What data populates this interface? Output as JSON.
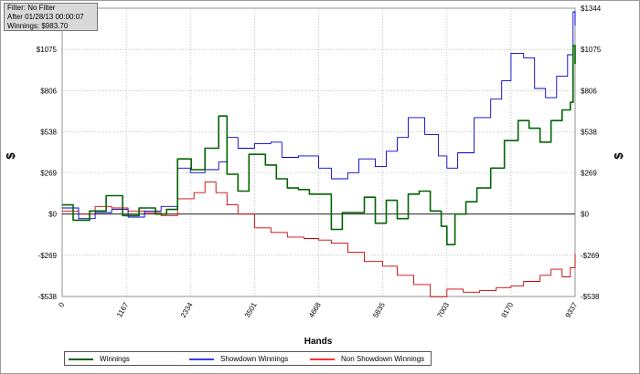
{
  "info_box": {
    "filter": "Filter: No Filter",
    "after": "After 01/28/13 00:00:07",
    "winnings": "Winnings: $983.70"
  },
  "chart_data": {
    "type": "line",
    "xlabel": "Hands",
    "ylabel_left": "$",
    "ylabel_right": "$",
    "xlim": [
      0,
      9337
    ],
    "ylim": [
      -538,
      1344
    ],
    "x_ticks": [
      0,
      1167,
      2334,
      3501,
      4668,
      5835,
      7003,
      8170,
      9337
    ],
    "x_tick_labels": [
      "0",
      "1167",
      "2334",
      "3501",
      "4668",
      "5835",
      "7003",
      "8170",
      "9337"
    ],
    "y_ticks": [
      -538,
      -269,
      0,
      269,
      538,
      806,
      1075,
      1344
    ],
    "y_tick_labels": [
      "-$538",
      "-$269",
      "$0",
      "$269",
      "$538",
      "$806",
      "$1075",
      "$1344"
    ],
    "left_y_tick_labels": [
      "-$538",
      "-$269",
      "$0",
      "$269",
      "$538",
      "$806",
      "$1075"
    ],
    "grid": true,
    "legend_position": "bottom-left",
    "series": [
      {
        "name": "Winnings",
        "color": "#006400",
        "points": [
          [
            0,
            60
          ],
          [
            200,
            -40
          ],
          [
            500,
            20
          ],
          [
            800,
            120
          ],
          [
            1100,
            -10
          ],
          [
            1400,
            40
          ],
          [
            1700,
            0
          ],
          [
            1900,
            30
          ],
          [
            2100,
            360
          ],
          [
            2350,
            290
          ],
          [
            2600,
            430
          ],
          [
            2850,
            640
          ],
          [
            3000,
            260
          ],
          [
            3200,
            150
          ],
          [
            3400,
            390
          ],
          [
            3700,
            320
          ],
          [
            3900,
            230
          ],
          [
            4100,
            170
          ],
          [
            4300,
            160
          ],
          [
            4500,
            130
          ],
          [
            4668,
            130
          ],
          [
            4900,
            -100
          ],
          [
            5100,
            10
          ],
          [
            5300,
            10
          ],
          [
            5500,
            110
          ],
          [
            5700,
            -60
          ],
          [
            5900,
            90
          ],
          [
            6100,
            -30
          ],
          [
            6300,
            130
          ],
          [
            6500,
            150
          ],
          [
            6700,
            20
          ],
          [
            6900,
            -80
          ],
          [
            7003,
            -200
          ],
          [
            7150,
            0
          ],
          [
            7350,
            80
          ],
          [
            7550,
            170
          ],
          [
            7800,
            300
          ],
          [
            8050,
            480
          ],
          [
            8300,
            610
          ],
          [
            8500,
            560
          ],
          [
            8700,
            470
          ],
          [
            8900,
            610
          ],
          [
            9100,
            680
          ],
          [
            9250,
            730
          ],
          [
            9300,
            1100
          ],
          [
            9337,
            980
          ]
        ]
      },
      {
        "name": "Showdown Winnings",
        "color": "#0000cc",
        "points": [
          [
            0,
            40
          ],
          [
            300,
            -30
          ],
          [
            600,
            10
          ],
          [
            900,
            30
          ],
          [
            1200,
            -20
          ],
          [
            1500,
            20
          ],
          [
            1800,
            50
          ],
          [
            2100,
            300
          ],
          [
            2334,
            270
          ],
          [
            2600,
            290
          ],
          [
            2850,
            340
          ],
          [
            3000,
            500
          ],
          [
            3200,
            430
          ],
          [
            3501,
            460
          ],
          [
            3800,
            470
          ],
          [
            4000,
            370
          ],
          [
            4300,
            380
          ],
          [
            4668,
            300
          ],
          [
            4900,
            230
          ],
          [
            5200,
            270
          ],
          [
            5400,
            360
          ],
          [
            5700,
            310
          ],
          [
            5900,
            410
          ],
          [
            6100,
            500
          ],
          [
            6300,
            630
          ],
          [
            6600,
            520
          ],
          [
            6850,
            380
          ],
          [
            7003,
            300
          ],
          [
            7200,
            400
          ],
          [
            7500,
            630
          ],
          [
            7800,
            750
          ],
          [
            8000,
            870
          ],
          [
            8170,
            1050
          ],
          [
            8400,
            1020
          ],
          [
            8600,
            820
          ],
          [
            8800,
            760
          ],
          [
            9000,
            900
          ],
          [
            9200,
            1040
          ],
          [
            9300,
            1320
          ],
          [
            9337,
            1230
          ]
        ]
      },
      {
        "name": "Non Showdown Winnings",
        "color": "#cc0000",
        "points": [
          [
            0,
            20
          ],
          [
            300,
            0
          ],
          [
            600,
            50
          ],
          [
            900,
            40
          ],
          [
            1200,
            20
          ],
          [
            1500,
            10
          ],
          [
            1800,
            -10
          ],
          [
            2100,
            100
          ],
          [
            2400,
            140
          ],
          [
            2600,
            210
          ],
          [
            2800,
            140
          ],
          [
            3000,
            60
          ],
          [
            3200,
            0
          ],
          [
            3501,
            -90
          ],
          [
            3800,
            -120
          ],
          [
            4100,
            -150
          ],
          [
            4400,
            -160
          ],
          [
            4668,
            -170
          ],
          [
            4900,
            -190
          ],
          [
            5200,
            -250
          ],
          [
            5500,
            -310
          ],
          [
            5835,
            -340
          ],
          [
            6100,
            -400
          ],
          [
            6400,
            -460
          ],
          [
            6700,
            -540
          ],
          [
            7003,
            -490
          ],
          [
            7300,
            -510
          ],
          [
            7600,
            -500
          ],
          [
            7900,
            -480
          ],
          [
            8170,
            -470
          ],
          [
            8400,
            -440
          ],
          [
            8700,
            -400
          ],
          [
            8900,
            -360
          ],
          [
            9100,
            -410
          ],
          [
            9250,
            -350
          ],
          [
            9337,
            -260
          ]
        ]
      }
    ]
  }
}
